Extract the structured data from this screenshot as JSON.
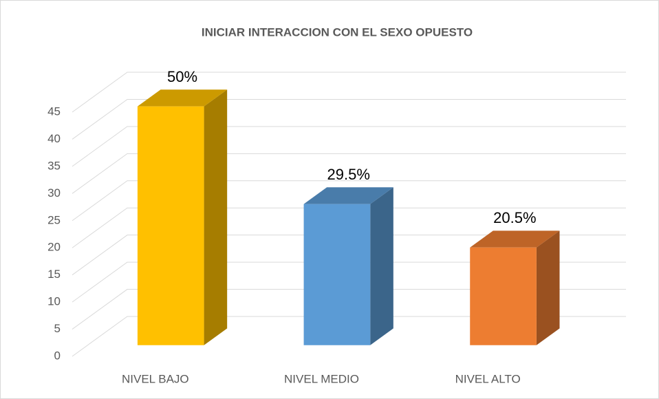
{
  "chart_data": {
    "type": "bar3d",
    "title": "INICIAR INTERACCION CON EL SEXO OPUESTO",
    "categories": [
      "NIVEL BAJO",
      "NIVEL MEDIO",
      "NIVEL ALTO"
    ],
    "values": [
      44,
      26,
      18
    ],
    "annotations": [
      "50%",
      "29.5%",
      "20.5%"
    ],
    "colors": [
      "#ffc000",
      "#5b9bd5",
      "#ed7d31"
    ],
    "ylim": [
      0,
      45
    ],
    "yticks": [
      0,
      5,
      10,
      15,
      20,
      25,
      30,
      35,
      40,
      45
    ],
    "grid": true
  }
}
